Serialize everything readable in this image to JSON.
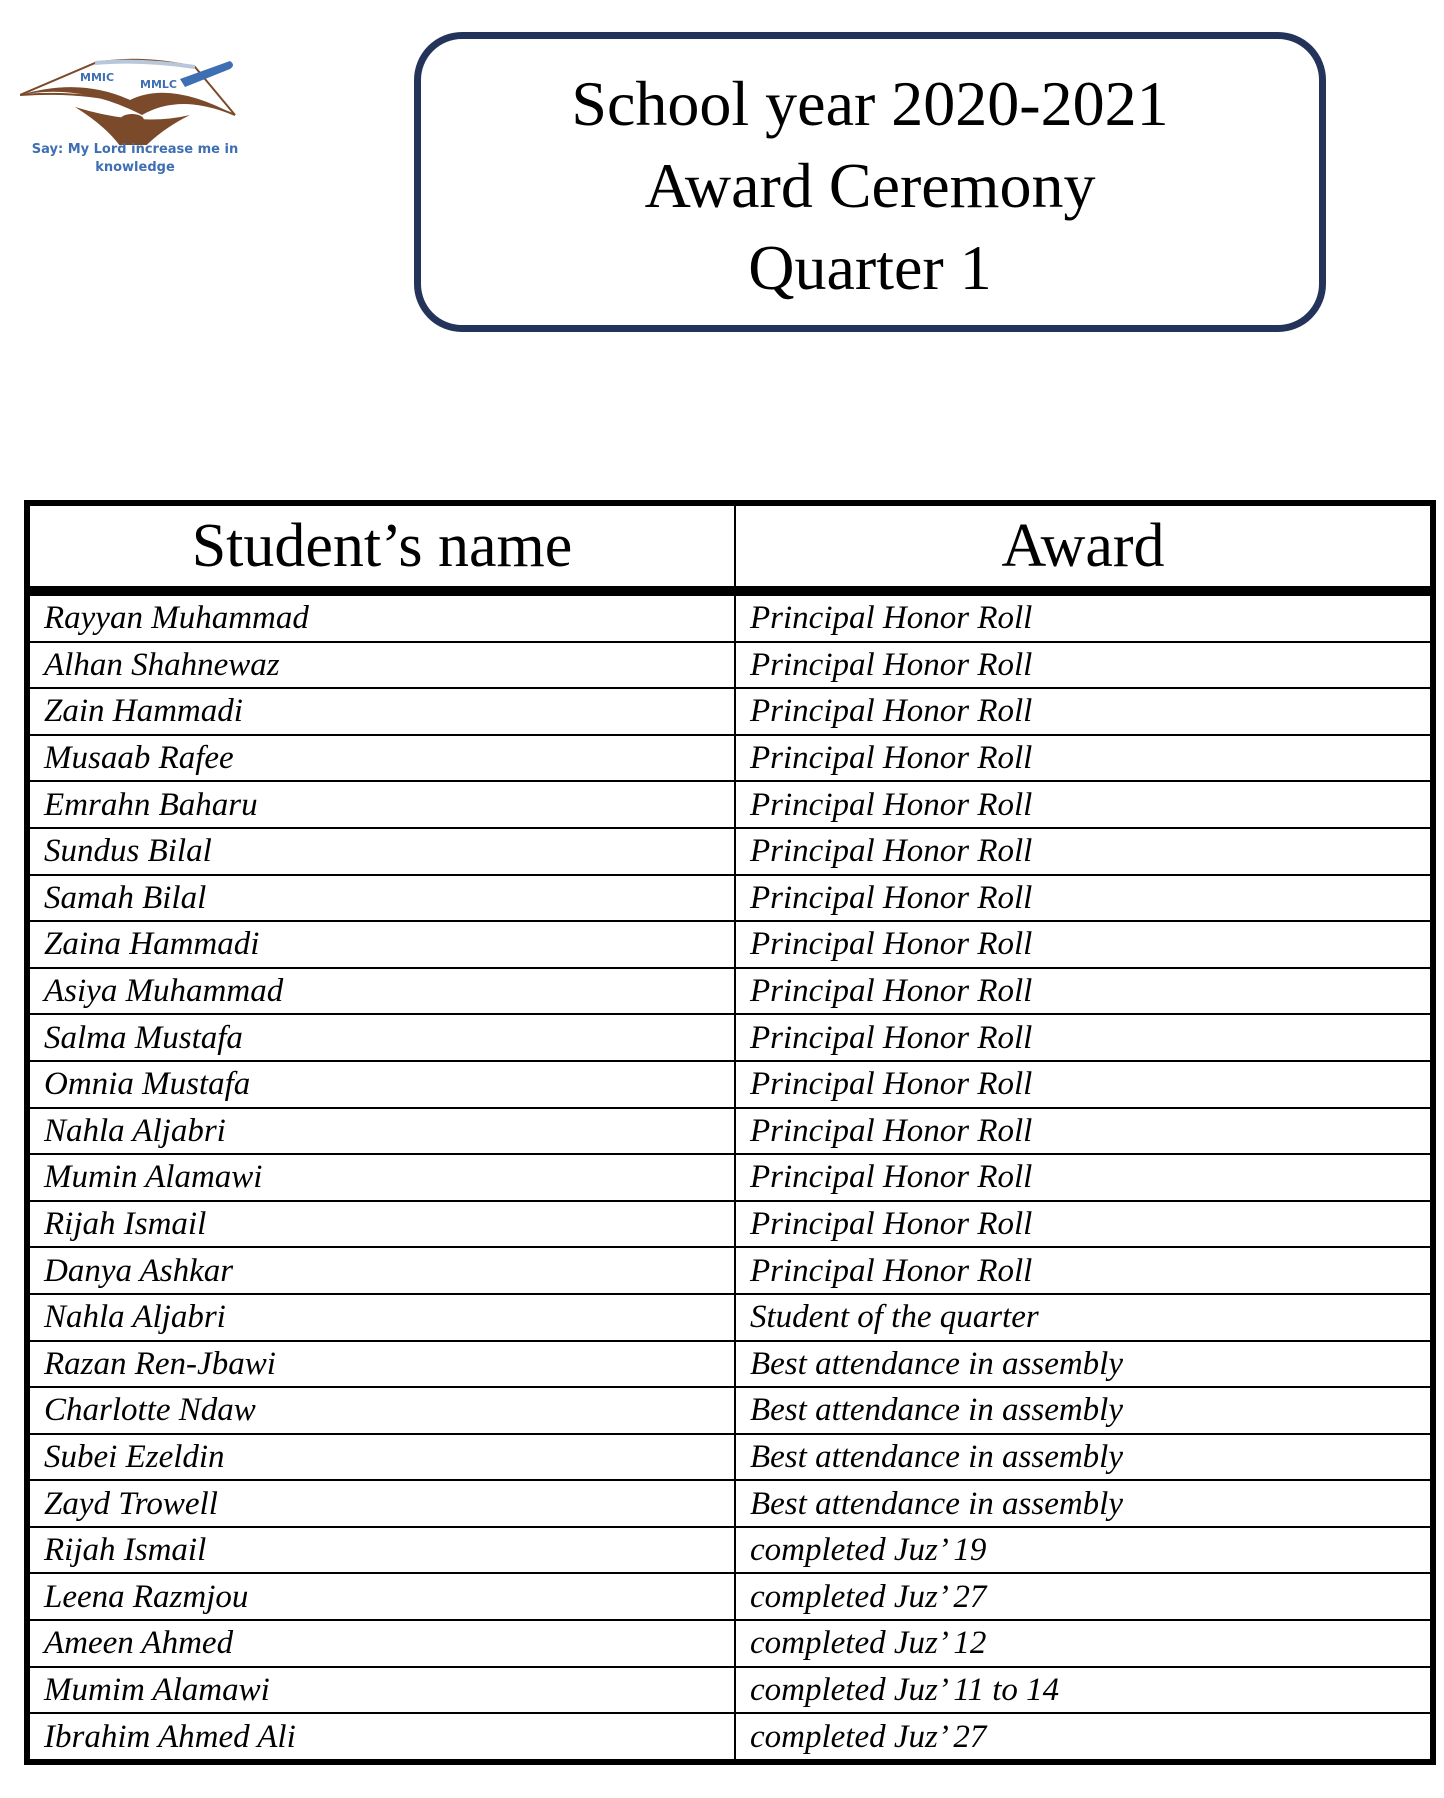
{
  "logo": {
    "text_top_left": "MMIC",
    "text_top_right": "MMLC",
    "motto": "Say: My Lord increase me in knowledge",
    "colors": {
      "brown": "#7b4a2a",
      "blue": "#3f6fb3"
    }
  },
  "title": {
    "line1": "School year 2020-2021",
    "line2": "Award Ceremony",
    "line3": "Quarter 1",
    "border_color": "#24335a"
  },
  "table": {
    "headers": [
      "Student’s name",
      "Award"
    ],
    "rows": [
      [
        "Rayyan Muhammad",
        "Principal Honor Roll"
      ],
      [
        "Alhan Shahnewaz",
        "Principal Honor Roll"
      ],
      [
        "Zain Hammadi",
        "Principal Honor Roll"
      ],
      [
        "Musaab Rafee",
        "Principal Honor Roll"
      ],
      [
        "Emrahn Baharu",
        "Principal Honor Roll"
      ],
      [
        "Sundus Bilal",
        "Principal Honor Roll"
      ],
      [
        "Samah Bilal",
        "Principal Honor Roll"
      ],
      [
        "Zaina Hammadi",
        "Principal Honor Roll"
      ],
      [
        "Asiya Muhammad",
        "Principal Honor Roll"
      ],
      [
        "Salma Mustafa",
        "Principal Honor Roll"
      ],
      [
        "Omnia Mustafa",
        "Principal Honor Roll"
      ],
      [
        "Nahla Aljabri",
        "Principal Honor Roll"
      ],
      [
        "Mumin Alamawi",
        "Principal Honor Roll"
      ],
      [
        "Rijah Ismail",
        "Principal Honor Roll"
      ],
      [
        "Danya Ashkar",
        "Principal Honor Roll"
      ],
      [
        "Nahla Aljabri",
        "Student of the quarter"
      ],
      [
        "Razan Ren-Jbawi",
        "Best attendance in assembly"
      ],
      [
        "Charlotte Ndaw",
        "Best attendance in assembly"
      ],
      [
        "Subei Ezeldin",
        "Best attendance in assembly"
      ],
      [
        "Zayd Trowell",
        "Best attendance in assembly"
      ],
      [
        "Rijah Ismail",
        "completed Juz’ 19"
      ],
      [
        "Leena Razmjou",
        "completed Juz’ 27"
      ],
      [
        "Ameen Ahmed",
        "completed Juz’ 12"
      ],
      [
        "Mumim Alamawi",
        "completed Juz’ 11 to 14"
      ],
      [
        "Ibrahim Ahmed Ali",
        "completed Juz’ 27"
      ]
    ]
  }
}
